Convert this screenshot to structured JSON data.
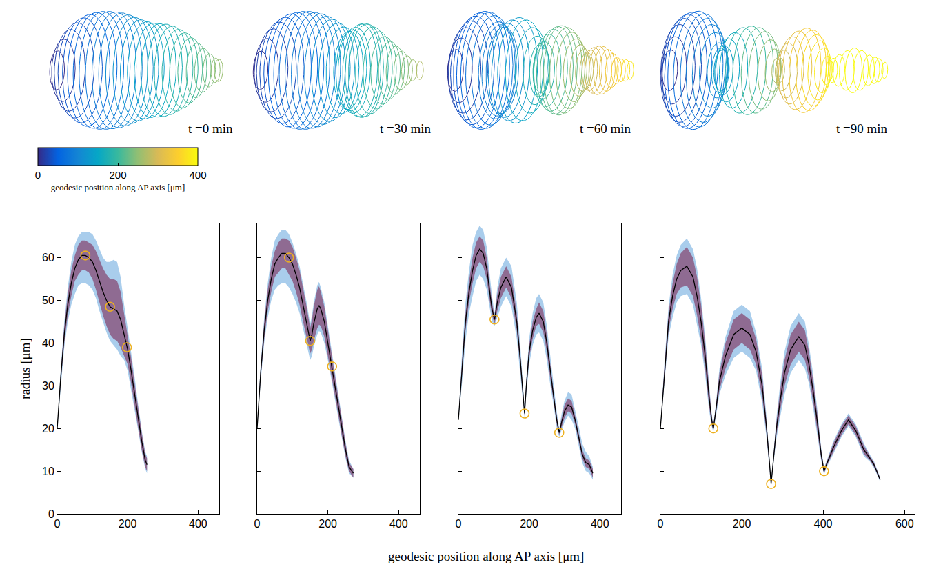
{
  "chart_data": [
    {
      "type": "line",
      "annotations": [
        "t =0 min"
      ],
      "ylabel": "radius [μm]",
      "xlim": [
        0,
        460
      ],
      "xticks": [
        0,
        200,
        400
      ],
      "ylim": [
        0,
        68
      ],
      "yticks": [
        0,
        10,
        20,
        30,
        40,
        50,
        60
      ],
      "tick_labels": true,
      "x": [
        0,
        10,
        20,
        30,
        40,
        50,
        60,
        70,
        80,
        90,
        100,
        110,
        120,
        130,
        140,
        150,
        160,
        170,
        180,
        190,
        200,
        210,
        220,
        230,
        240,
        250,
        255
      ],
      "values": [
        20,
        32,
        42,
        49,
        54,
        57.5,
        59.5,
        60.5,
        60.5,
        60,
        59,
        57,
        54.5,
        52,
        50,
        48.5,
        48,
        47.5,
        45.5,
        42,
        38.5,
        33.5,
        28,
        22.5,
        17,
        12.5,
        11.5
      ],
      "color": "#000000",
      "band_inner": {
        "color": "#8f6b92",
        "low": [
          20,
          31,
          40,
          46.5,
          51,
          54.5,
          56,
          57,
          57,
          56.5,
          55,
          52.5,
          49.5,
          46.5,
          44,
          42,
          41,
          40.5,
          39,
          37,
          35,
          30.5,
          25.5,
          20.5,
          15,
          11,
          10
        ],
        "high": [
          20,
          33,
          44,
          51.5,
          57,
          60.5,
          63,
          64,
          64,
          63.5,
          63,
          61.5,
          59.5,
          57.5,
          56,
          55,
          55,
          54.5,
          52,
          47,
          42,
          36.5,
          30.5,
          24.5,
          19,
          14,
          13
        ]
      },
      "band_outer": {
        "color": "#a9cdec",
        "low": [
          20,
          30,
          39,
          45,
          49,
          51.5,
          53.5,
          54,
          54,
          53.5,
          52.5,
          50.5,
          47.5,
          45,
          42.5,
          40.5,
          39.5,
          38.5,
          37,
          36,
          33.5,
          29,
          24,
          19.5,
          14.5,
          10.5,
          9.5
        ],
        "high": [
          20,
          34,
          45,
          53,
          59,
          63,
          65,
          66,
          66,
          66,
          65.5,
          64,
          62,
          60,
          59,
          59,
          59.5,
          59,
          55.5,
          49,
          43.5,
          38,
          32,
          25.5,
          19.5,
          14.5,
          13.5
        ]
      },
      "markers": {
        "marker": "circle-open",
        "color": "#edb120",
        "x": [
          80,
          150,
          198
        ],
        "y": [
          60.5,
          48.5,
          39
        ]
      }
    },
    {
      "type": "line",
      "annotations": [
        "t =30 min"
      ],
      "xlim": [
        0,
        460
      ],
      "xticks": [
        0,
        200,
        400
      ],
      "ylim": [
        0,
        68
      ],
      "yticks": [
        0,
        10,
        20,
        30,
        40,
        50,
        60
      ],
      "tick_labels": "x",
      "x": [
        0,
        10,
        20,
        30,
        40,
        50,
        60,
        70,
        80,
        90,
        100,
        110,
        120,
        130,
        140,
        150,
        155,
        160,
        170,
        175,
        180,
        190,
        200,
        210,
        220,
        230,
        240,
        250,
        260,
        272
      ],
      "values": [
        20,
        33,
        43,
        50,
        55,
        58.5,
        60,
        61,
        61,
        60,
        58.5,
        56,
        53,
        49,
        45,
        40.5,
        42,
        44.5,
        48,
        48.8,
        48,
        45,
        40,
        35,
        30,
        25,
        20,
        15,
        11,
        9.5
      ],
      "color": "#000000",
      "band_inner": {
        "color": "#8f6b92",
        "low": [
          20,
          32,
          41,
          47.5,
          52,
          55.5,
          56.5,
          57.5,
          57.5,
          56,
          54.5,
          52,
          49,
          45,
          41.5,
          37.5,
          38.5,
          40.5,
          43.5,
          44.3,
          44,
          41.5,
          37,
          32.5,
          28,
          23,
          18,
          13.5,
          10,
          8.5
        ],
        "high": [
          20,
          34,
          45,
          52.5,
          58,
          61.5,
          63.5,
          64.5,
          64.5,
          64,
          62.5,
          60,
          57,
          53,
          48.5,
          43.5,
          45.5,
          48.5,
          52.5,
          53.3,
          52,
          48.5,
          43,
          37.5,
          32,
          27,
          22,
          16.5,
          12,
          10.5
        ]
      },
      "band_outer": {
        "color": "#a9cdec",
        "low": [
          20,
          31,
          40,
          46,
          50,
          52.5,
          53.5,
          54,
          54,
          53,
          51.5,
          49.5,
          47,
          43.5,
          40,
          36,
          37,
          39,
          42,
          42.8,
          42.5,
          40,
          36,
          31.5,
          27,
          22.5,
          17.5,
          13,
          9.5,
          8.5
        ],
        "high": [
          20,
          35,
          46,
          54,
          60,
          64,
          65.5,
          66.5,
          66.5,
          65.5,
          63.5,
          61,
          58,
          54,
          49.5,
          44.5,
          46.5,
          49.5,
          53.5,
          54.3,
          53,
          49.5,
          44,
          38.5,
          33,
          27.5,
          22.5,
          17,
          12.5,
          10.5
        ]
      },
      "markers": {
        "marker": "circle-open",
        "color": "#edb120",
        "x": [
          90,
          150,
          212
        ],
        "y": [
          60,
          40.5,
          34.5
        ]
      }
    },
    {
      "type": "line",
      "annotations": [
        "t =60 min"
      ],
      "xlim": [
        0,
        460
      ],
      "xticks": [
        0,
        200,
        400
      ],
      "ylim": [
        0,
        68
      ],
      "yticks": [
        0,
        10,
        20,
        30,
        40,
        50,
        60
      ],
      "tick_labels": "x",
      "x": [
        0,
        10,
        20,
        30,
        40,
        50,
        60,
        70,
        80,
        90,
        95,
        102,
        110,
        120,
        135,
        150,
        165,
        175,
        183,
        187,
        192,
        200,
        210,
        220,
        228,
        240,
        250,
        260,
        270,
        278,
        285,
        292,
        300,
        310,
        320,
        330,
        340,
        350,
        360,
        370,
        380
      ],
      "values": [
        22,
        34,
        45,
        52,
        57,
        60.5,
        62,
        61,
        57.5,
        51,
        48,
        45.5,
        49.5,
        53,
        55.5,
        53,
        45,
        36,
        28,
        23.5,
        30,
        38,
        43,
        46,
        47,
        45,
        40,
        33,
        27,
        22,
        19,
        21.5,
        24,
        25.5,
        25,
        22,
        18,
        14,
        12,
        11.5,
        9.5
      ],
      "color": "#000000",
      "band_inner": {
        "color": "#8f6b92",
        "low": [
          22,
          32.5,
          43,
          49.5,
          54,
          57.5,
          59,
          58,
          55,
          49,
          46.5,
          44.5,
          47.5,
          50.5,
          53,
          50.5,
          43,
          34.5,
          27,
          23,
          29,
          36.5,
          41,
          44,
          44.5,
          42.5,
          38,
          31.5,
          26,
          21,
          18.5,
          20.5,
          22.5,
          24,
          23.5,
          21,
          17,
          13,
          11,
          10.5,
          8.5
        ],
        "high": [
          22,
          35.5,
          47,
          54.5,
          60,
          63.5,
          65,
          64,
          60,
          53,
          49.5,
          46.5,
          51.5,
          55.5,
          58,
          55.5,
          47,
          37.5,
          29,
          24,
          31,
          39.5,
          45,
          48,
          49.5,
          47.5,
          42,
          34.5,
          28,
          23,
          19.5,
          22.5,
          25.5,
          27,
          26.5,
          23,
          19,
          15,
          13,
          12.5,
          10.5
        ]
      },
      "band_outer": {
        "color": "#a9cdec",
        "low": [
          22,
          30.5,
          40.5,
          47,
          51,
          54.5,
          56,
          55,
          52.5,
          47,
          45,
          44,
          46,
          48.5,
          51,
          48.5,
          41,
          33,
          26,
          22.5,
          28,
          35,
          39.5,
          42,
          42.5,
          40.5,
          36,
          30,
          25,
          20,
          18,
          19.5,
          21.5,
          23,
          22,
          20,
          16,
          12,
          10,
          9.5,
          8
        ],
        "high": [
          22,
          37.5,
          49.5,
          57,
          63,
          66,
          67.5,
          66.5,
          62.5,
          55,
          51,
          47,
          53,
          57.5,
          60,
          58,
          49.5,
          39.5,
          30,
          24.5,
          32,
          41,
          47,
          50.5,
          51.5,
          49.5,
          44,
          36.5,
          29.5,
          24,
          20,
          23.5,
          26.5,
          28.5,
          28,
          24.5,
          20.5,
          16.5,
          14.5,
          13.5,
          11
        ]
      },
      "markers": {
        "marker": "circle-open",
        "color": "#edb120",
        "x": [
          102,
          187,
          285
        ],
        "y": [
          45.5,
          23.5,
          19
        ]
      }
    },
    {
      "type": "line",
      "annotations": [
        "t =90 min"
      ],
      "xlim": [
        0,
        625
      ],
      "xticks": [
        0,
        200,
        400,
        600
      ],
      "ylim": [
        0,
        68
      ],
      "yticks": [
        0,
        10,
        20,
        30,
        40,
        50,
        60
      ],
      "tick_labels": "x",
      "x": [
        0,
        10,
        20,
        30,
        40,
        50,
        65,
        80,
        90,
        100,
        110,
        120,
        126,
        130,
        136,
        145,
        160,
        180,
        200,
        220,
        235,
        250,
        260,
        268,
        272,
        277,
        285,
        295,
        305,
        320,
        340,
        355,
        365,
        375,
        385,
        395,
        402,
        410,
        425,
        445,
        462,
        480,
        500,
        515,
        525,
        540
      ],
      "values": [
        20,
        33,
        45,
        51,
        55,
        57,
        58,
        55.5,
        51,
        45,
        37,
        27,
        22,
        20,
        24,
        31,
        37,
        42,
        43.5,
        42,
        38,
        30,
        21,
        12,
        7,
        12,
        20,
        27,
        33,
        38.5,
        41.5,
        39.5,
        35,
        29,
        22,
        14,
        10,
        12,
        15.5,
        19.5,
        22,
        19.5,
        15,
        13,
        11.5,
        8
      ],
      "color": "#000000",
      "band_inner": {
        "color": "#8f6b92",
        "low": [
          20,
          31.5,
          43,
          48,
          51.5,
          53,
          53.5,
          51,
          46.5,
          41,
          34,
          25,
          21,
          19.5,
          23,
          29,
          34,
          38.5,
          40,
          38.5,
          35,
          27.5,
          19.5,
          11.5,
          6.7,
          11.5,
          18.5,
          24.5,
          30,
          35,
          38,
          36,
          32,
          26.5,
          20,
          13,
          9.5,
          11.5,
          14.5,
          18.5,
          21,
          18.5,
          14,
          12.5,
          11,
          7.7
        ],
        "high": [
          20,
          34.5,
          47,
          54,
          58.5,
          61,
          62.5,
          60,
          55.5,
          49,
          40,
          29,
          23,
          20.5,
          25,
          33,
          40,
          45.5,
          47,
          45.5,
          41,
          32.5,
          22.5,
          12.5,
          7.3,
          12.5,
          21.5,
          29.5,
          36,
          42,
          45,
          43,
          38,
          31.5,
          24,
          15,
          10.5,
          12.5,
          16.5,
          20.5,
          23,
          20.5,
          16,
          13.5,
          12,
          8.3
        ]
      },
      "band_outer": {
        "color": "#a9cdec",
        "low": [
          20,
          30.5,
          41.5,
          46,
          49.5,
          51,
          51.5,
          49,
          44.5,
          39.5,
          32.5,
          24,
          20.5,
          19.2,
          22.5,
          28,
          32.5,
          36.5,
          38,
          36.5,
          33.5,
          26,
          18.5,
          11.2,
          6.5,
          11.2,
          17.5,
          23,
          28,
          33,
          36,
          34,
          30.5,
          25,
          19,
          12.5,
          9.2,
          11.2,
          14,
          18,
          20.5,
          18,
          13.5,
          12.2,
          10.7,
          7.5
        ],
        "high": [
          20,
          35.5,
          48.5,
          56,
          60.5,
          63,
          64.5,
          62,
          57.5,
          50.5,
          41.5,
          30,
          23.5,
          20.8,
          25.5,
          34,
          41.5,
          47.5,
          49,
          47.5,
          42.5,
          34,
          23.5,
          12.8,
          7.5,
          12.8,
          22.5,
          31,
          38,
          44,
          47,
          45,
          39.5,
          33,
          25,
          15.5,
          10.8,
          12.8,
          17,
          21,
          23.5,
          21,
          16.5,
          13.8,
          12.3,
          8.5
        ]
      },
      "markers": {
        "marker": "circle-open",
        "color": "#edb120",
        "x": [
          130,
          272,
          402
        ],
        "y": [
          20,
          7,
          10
        ]
      }
    }
  ],
  "figure": {
    "xlabel": "geodesic position along AP axis [μm]",
    "colorbar": {
      "label": "geodesic position along AP axis [μm]",
      "range": [
        0,
        400
      ],
      "ticks": [
        0,
        200,
        400
      ]
    }
  }
}
